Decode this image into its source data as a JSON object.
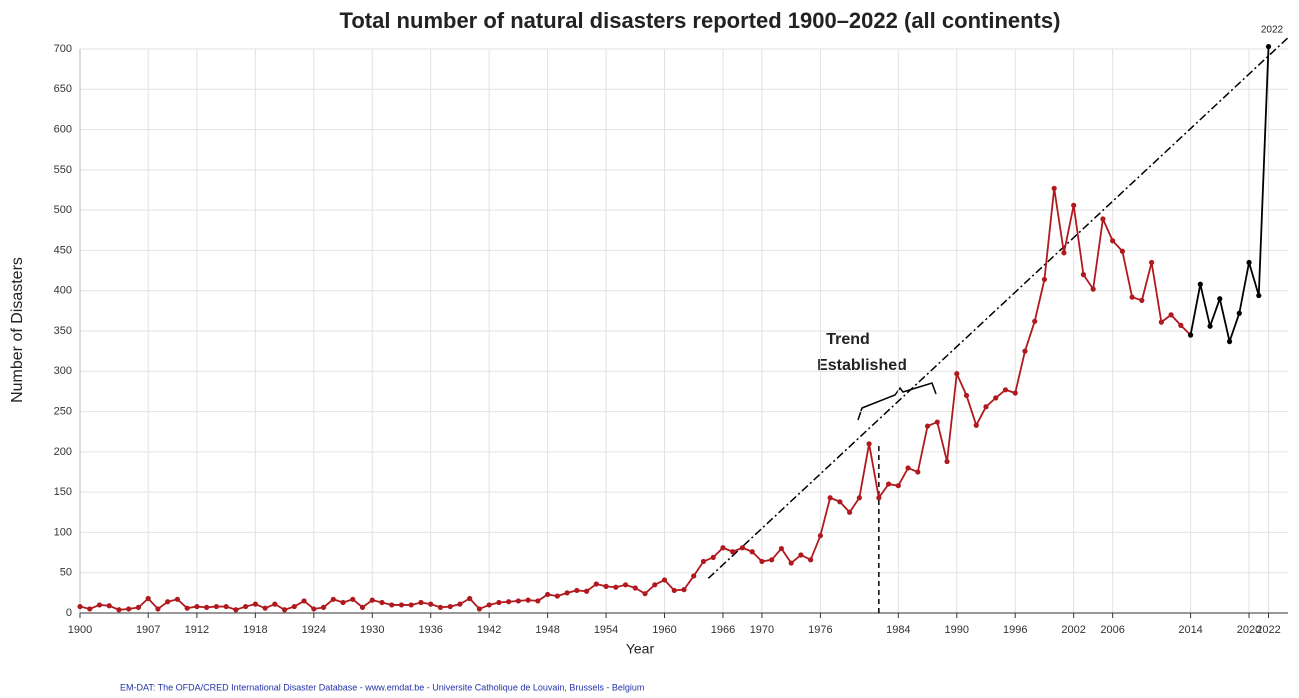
{
  "chart_data": {
    "type": "line",
    "title": "Total number of natural disasters reported 1900–2022 (all continents)",
    "x_label": "Year",
    "y_label": "Number of Disasters",
    "xlim": [
      1900,
      2024
    ],
    "xticks": [
      1900,
      1907,
      1912,
      1918,
      1924,
      1930,
      1936,
      1942,
      1948,
      1954,
      1960,
      1966,
      1970,
      1976,
      1984,
      1990,
      1996,
      2002,
      2006,
      2014,
      2020,
      2022
    ],
    "ylim": [
      0,
      700
    ],
    "yticks": [
      0,
      50,
      100,
      150,
      200,
      250,
      300,
      350,
      400,
      450,
      500,
      550,
      600,
      650,
      700
    ],
    "grid": true,
    "series": [
      {
        "color": "#b0191e",
        "x": [
          1900,
          1901,
          1902,
          1903,
          1904,
          1905,
          1906,
          1907,
          1908,
          1909,
          1910,
          1911,
          1912,
          1913,
          1914,
          1915,
          1916,
          1917,
          1918,
          1919,
          1920,
          1921,
          1922,
          1923,
          1924,
          1925,
          1926,
          1927,
          1928,
          1929,
          1930,
          1931,
          1932,
          1933,
          1934,
          1935,
          1936,
          1937,
          1938,
          1939,
          1940,
          1941,
          1942,
          1943,
          1944,
          1945,
          1946,
          1947,
          1948,
          1949,
          1950,
          1951,
          1952,
          1953,
          1954,
          1955,
          1956,
          1957,
          1958,
          1959,
          1960,
          1961,
          1962,
          1963,
          1964,
          1965,
          1966,
          1967,
          1968,
          1969,
          1970,
          1971,
          1972,
          1973,
          1974,
          1975,
          1976,
          1977,
          1978,
          1979,
          1980,
          1981,
          1982,
          1983,
          1984,
          1985,
          1986,
          1987,
          1988,
          1989,
          1990,
          1991,
          1992,
          1993,
          1994,
          1995,
          1996,
          1997,
          1998,
          1999,
          2000,
          2001,
          2002,
          2003,
          2004,
          2005,
          2006,
          2007,
          2008,
          2009,
          2010,
          2011,
          2012,
          2013,
          2014
        ],
        "values": [
          8,
          5,
          10,
          9,
          4,
          5,
          7,
          18,
          5,
          14,
          17,
          6,
          8,
          7,
          8,
          8,
          4,
          8,
          11,
          6,
          11,
          4,
          8,
          15,
          5,
          7,
          17,
          13,
          17,
          7,
          16,
          13,
          10,
          10,
          10,
          13,
          11,
          7,
          8,
          11,
          18,
          5,
          10,
          13,
          14,
          15,
          16,
          15,
          23,
          21,
          25,
          28,
          27,
          36,
          33,
          32,
          35,
          31,
          24,
          35,
          41,
          28,
          29,
          46,
          64,
          69,
          81,
          76,
          81,
          76,
          64,
          66,
          80,
          62,
          72,
          66,
          96,
          143,
          138,
          125,
          143,
          210,
          143,
          160,
          158,
          180,
          175,
          232,
          237,
          188,
          297,
          270,
          233,
          256,
          267,
          277,
          273,
          325,
          362,
          414,
          527,
          447,
          506,
          420,
          402,
          489,
          462,
          449,
          392,
          388,
          435,
          361,
          370,
          357,
          345
        ]
      },
      {
        "color": "#000000",
        "x": [
          2014,
          2015,
          2016,
          2017,
          2018,
          2019,
          2020,
          2021,
          2022
        ],
        "values": [
          345,
          408,
          356,
          390,
          337,
          372,
          435,
          394,
          703
        ]
      }
    ],
    "trend_line": {
      "x": [
        1964.5,
        2024
      ],
      "values": [
        43,
        714
      ]
    },
    "marker_line": {
      "x": 1982,
      "values": [
        0,
        210
      ]
    },
    "annotation": [
      "Trend",
      "Established"
    ],
    "end_label": "2022",
    "source": "EM-DAT: The OFDA/CRED International Disaster Database - www.emdat.be - Universite Catholique de Louvain, Brussels - Belgium"
  }
}
